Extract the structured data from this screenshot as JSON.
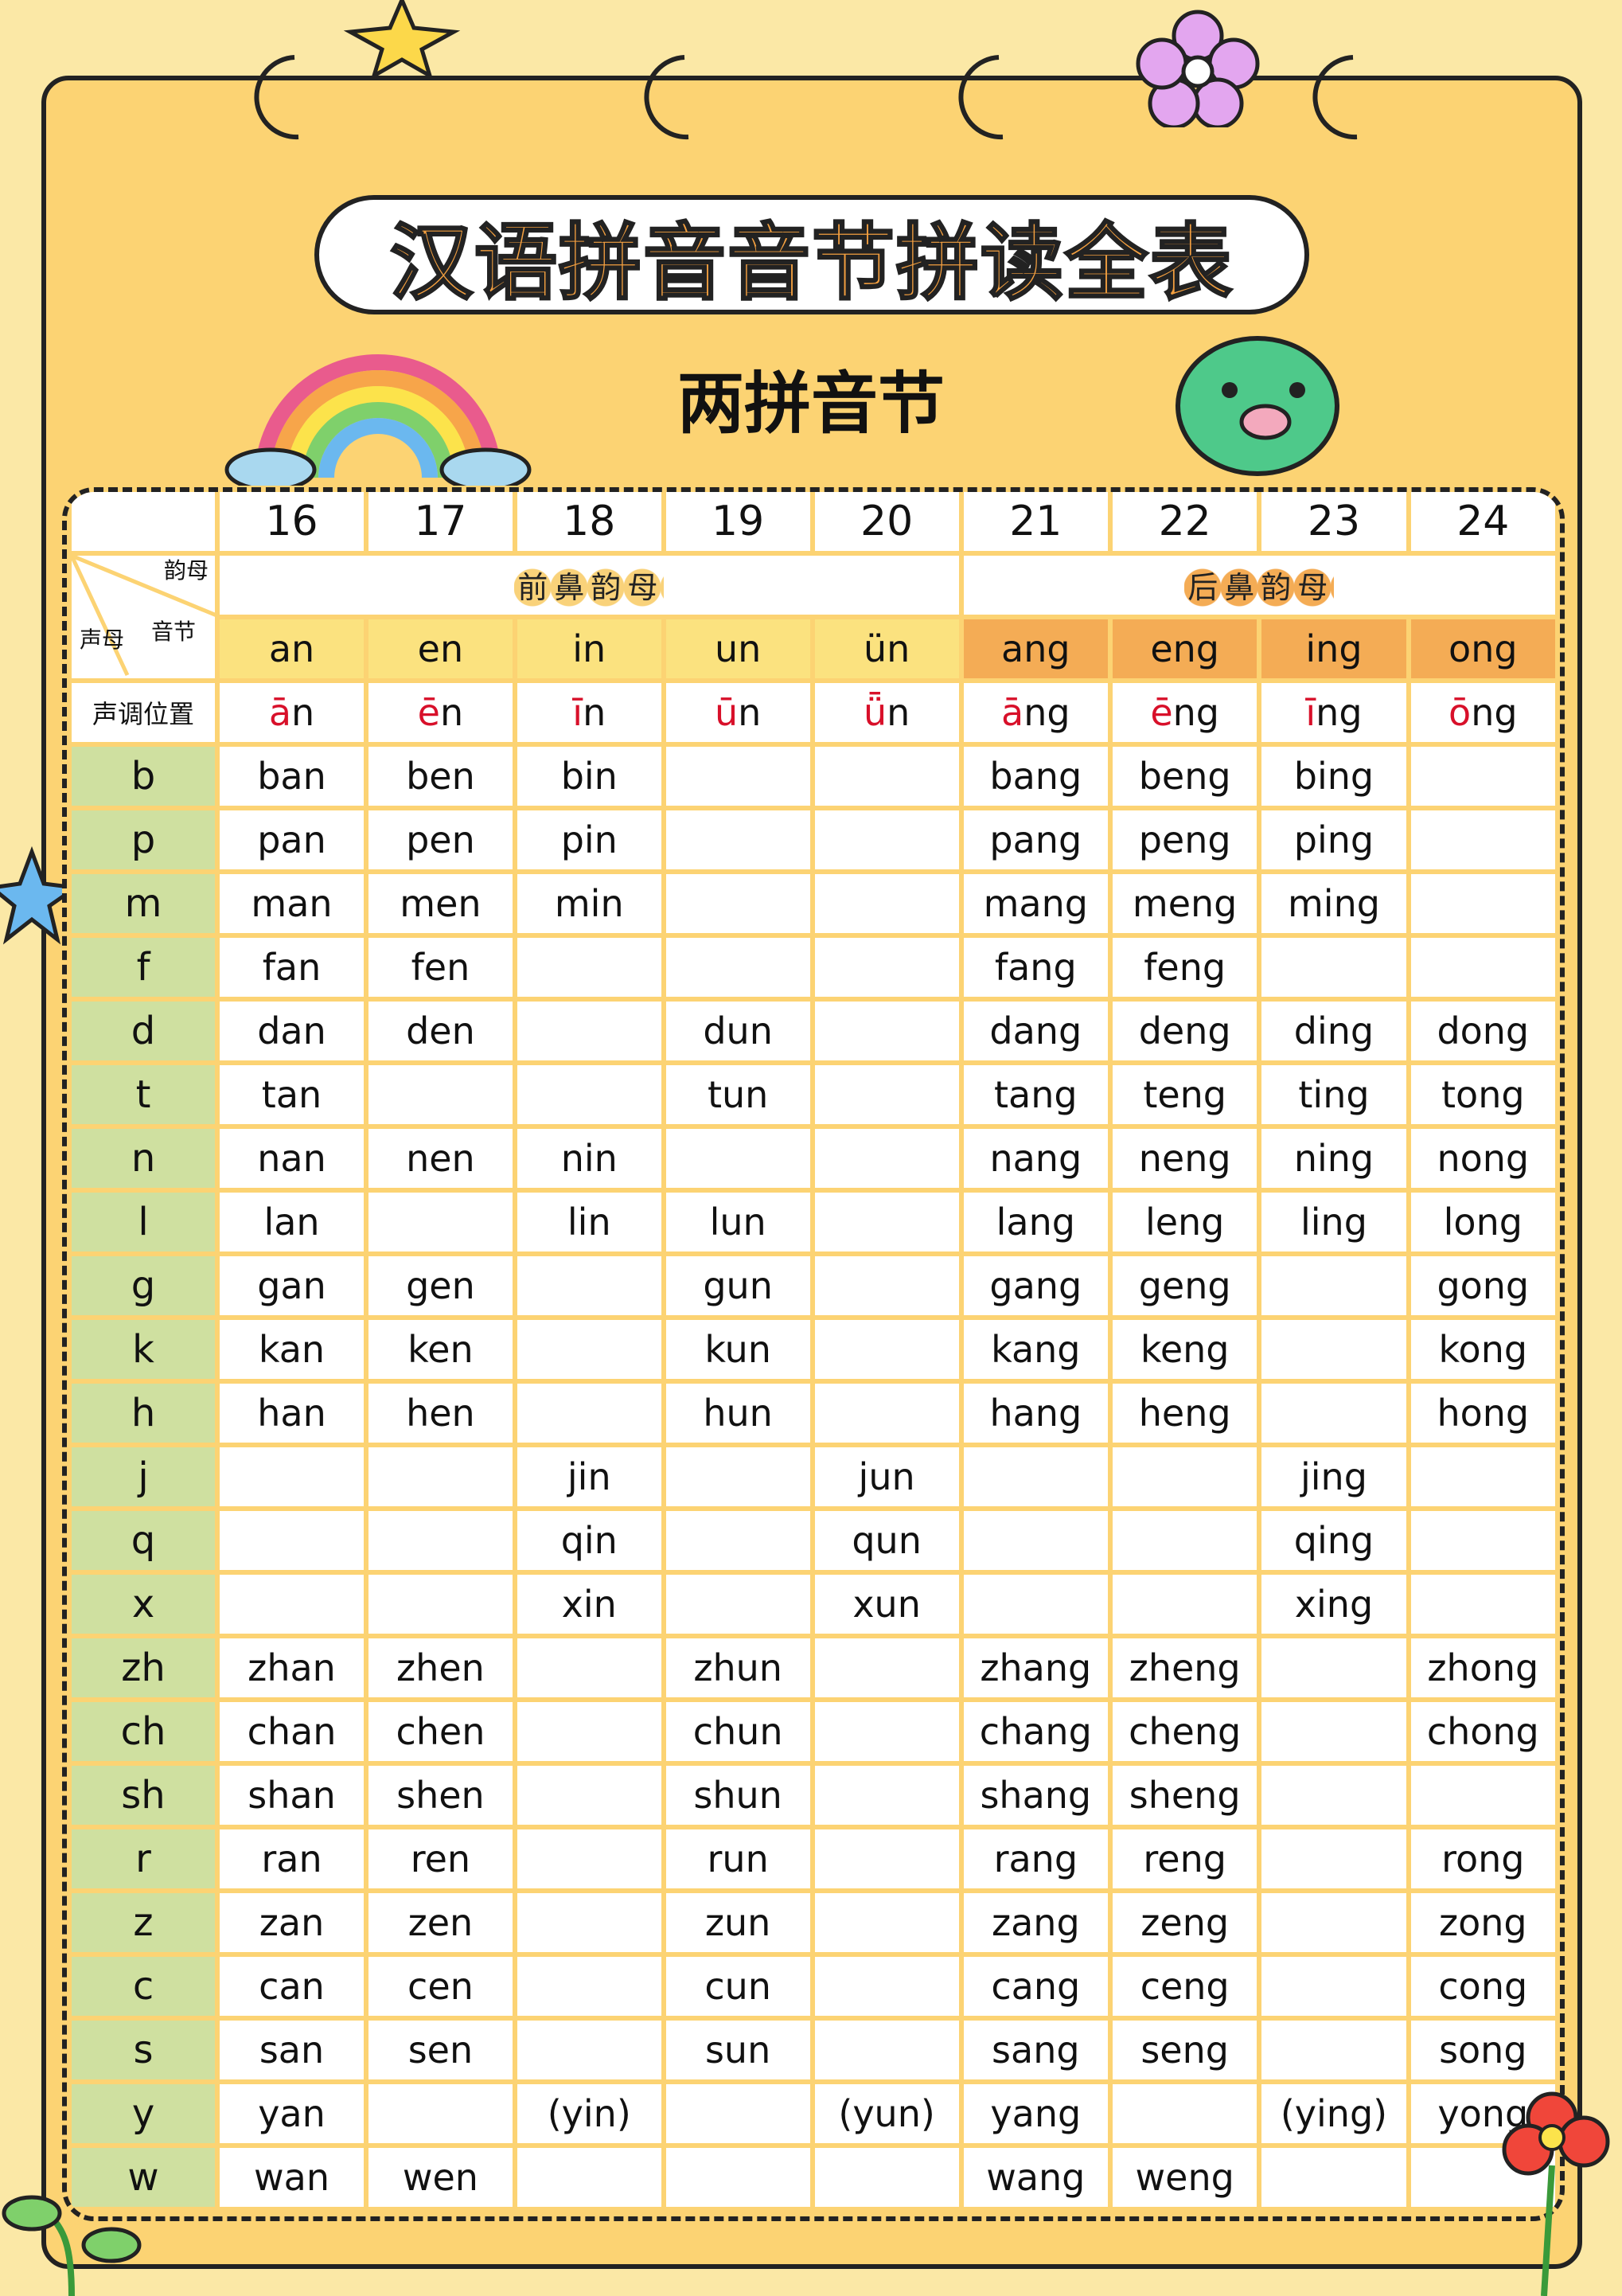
{
  "title": "汉语拼音音节拼读全表",
  "subtitle": "两拼音节",
  "corner": {
    "top": "韵母",
    "middle": "音节",
    "bottom": "声母"
  },
  "tone_label": "声调位置",
  "column_numbers": [
    "16",
    "17",
    "18",
    "19",
    "20",
    "21",
    "22",
    "23",
    "24"
  ],
  "categories": {
    "front": "前鼻韵母",
    "back": "后鼻韵母"
  },
  "finals": [
    "an",
    "en",
    "in",
    "un",
    "ün",
    "ang",
    "eng",
    "ing",
    "ong"
  ],
  "tone_positions": [
    {
      "mark": "ā",
      "rest": "n"
    },
    {
      "mark": "ē",
      "rest": "n"
    },
    {
      "mark": "ī",
      "rest": "n"
    },
    {
      "mark": "ū",
      "rest": "n"
    },
    {
      "mark": "ǖ",
      "rest": "n"
    },
    {
      "mark": "ā",
      "rest": "ng"
    },
    {
      "mark": "ē",
      "rest": "ng"
    },
    {
      "mark": "ī",
      "rest": "ng"
    },
    {
      "mark": "ō",
      "rest": "ng"
    }
  ],
  "rows": [
    {
      "initial": "b",
      "cells": [
        "ban",
        "ben",
        "bin",
        "",
        "",
        "bang",
        "beng",
        "bing",
        ""
      ]
    },
    {
      "initial": "p",
      "cells": [
        "pan",
        "pen",
        "pin",
        "",
        "",
        "pang",
        "peng",
        "ping",
        ""
      ]
    },
    {
      "initial": "m",
      "cells": [
        "man",
        "men",
        "min",
        "",
        "",
        "mang",
        "meng",
        "ming",
        ""
      ]
    },
    {
      "initial": "f",
      "cells": [
        "fan",
        "fen",
        "",
        "",
        "",
        "fang",
        "feng",
        "",
        ""
      ]
    },
    {
      "initial": "d",
      "cells": [
        "dan",
        "den",
        "",
        "dun",
        "",
        "dang",
        "deng",
        "ding",
        "dong"
      ]
    },
    {
      "initial": "t",
      "cells": [
        "tan",
        "",
        "",
        "tun",
        "",
        "tang",
        "teng",
        "ting",
        "tong"
      ]
    },
    {
      "initial": "n",
      "cells": [
        "nan",
        "nen",
        "nin",
        "",
        "",
        "nang",
        "neng",
        "ning",
        "nong"
      ]
    },
    {
      "initial": "l",
      "cells": [
        "lan",
        "",
        "lin",
        "lun",
        "",
        "lang",
        "leng",
        "ling",
        "long"
      ]
    },
    {
      "initial": "g",
      "cells": [
        "gan",
        "gen",
        "",
        "gun",
        "",
        "gang",
        "geng",
        "",
        "gong"
      ]
    },
    {
      "initial": "k",
      "cells": [
        "kan",
        "ken",
        "",
        "kun",
        "",
        "kang",
        "keng",
        "",
        "kong"
      ]
    },
    {
      "initial": "h",
      "cells": [
        "han",
        "hen",
        "",
        "hun",
        "",
        "hang",
        "heng",
        "",
        "hong"
      ]
    },
    {
      "initial": "j",
      "cells": [
        "",
        "",
        "jin",
        "",
        "jun",
        "",
        "",
        "jing",
        ""
      ]
    },
    {
      "initial": "q",
      "cells": [
        "",
        "",
        "qin",
        "",
        "qun",
        "",
        "",
        "qing",
        ""
      ]
    },
    {
      "initial": "x",
      "cells": [
        "",
        "",
        "xin",
        "",
        "xun",
        "",
        "",
        "xing",
        ""
      ]
    },
    {
      "initial": "zh",
      "cells": [
        "zhan",
        "zhen",
        "",
        "zhun",
        "",
        "zhang",
        "zheng",
        "",
        "zhong"
      ]
    },
    {
      "initial": "ch",
      "cells": [
        "chan",
        "chen",
        "",
        "chun",
        "",
        "chang",
        "cheng",
        "",
        "chong"
      ]
    },
    {
      "initial": "sh",
      "cells": [
        "shan",
        "shen",
        "",
        "shun",
        "",
        "shang",
        "sheng",
        "",
        ""
      ]
    },
    {
      "initial": "r",
      "cells": [
        "ran",
        "ren",
        "",
        "run",
        "",
        "rang",
        "reng",
        "",
        "rong"
      ]
    },
    {
      "initial": "z",
      "cells": [
        "zan",
        "zen",
        "",
        "zun",
        "",
        "zang",
        "zeng",
        "",
        "zong"
      ]
    },
    {
      "initial": "c",
      "cells": [
        "can",
        "cen",
        "",
        "cun",
        "",
        "cang",
        "ceng",
        "",
        "cong"
      ]
    },
    {
      "initial": "s",
      "cells": [
        "san",
        "sen",
        "",
        "sun",
        "",
        "sang",
        "seng",
        "",
        "song"
      ]
    },
    {
      "initial": "y",
      "cells": [
        "yan",
        "",
        "(yin)",
        "",
        "(yun)",
        "yang",
        "",
        "(ying)",
        "yong"
      ]
    },
    {
      "initial": "w",
      "cells": [
        "wan",
        "wen",
        "",
        "",
        "",
        "wang",
        "weng",
        "",
        ""
      ]
    }
  ],
  "colors": {
    "background": "#fbe8a6",
    "frame": "#fcd373",
    "front_final": "#fbe27f",
    "back_final": "#f4ac55",
    "initial_col": "#cfe0a0",
    "tone_mark": "#d8102a",
    "title": "#f4a040"
  }
}
